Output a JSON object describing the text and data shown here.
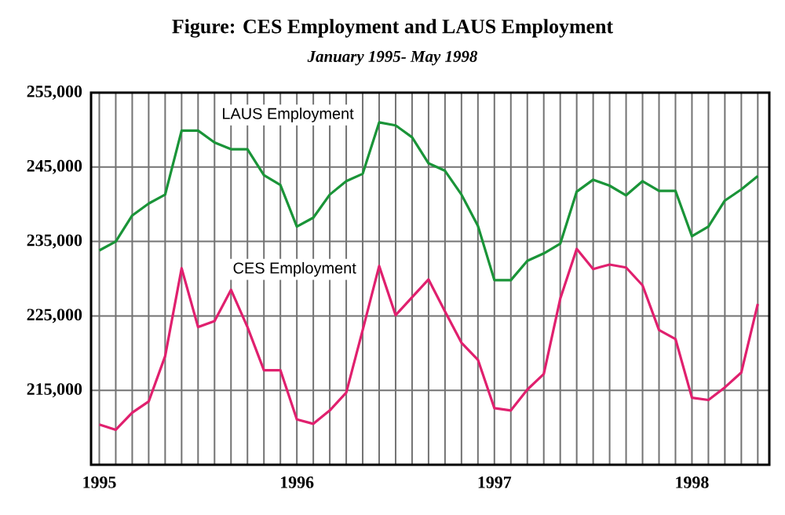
{
  "chart_data": {
    "type": "line",
    "title": "Figure:  CES Employment and LAUS Employment",
    "subtitle": "January 1995- May 1998",
    "x": [
      "1995-01",
      "1995-02",
      "1995-03",
      "1995-04",
      "1995-05",
      "1995-06",
      "1995-07",
      "1995-08",
      "1995-09",
      "1995-10",
      "1995-11",
      "1995-12",
      "1996-01",
      "1996-02",
      "1996-03",
      "1996-04",
      "1996-05",
      "1996-06",
      "1996-07",
      "1996-08",
      "1996-09",
      "1996-10",
      "1996-11",
      "1996-12",
      "1997-01",
      "1997-02",
      "1997-03",
      "1997-04",
      "1997-05",
      "1997-06",
      "1997-07",
      "1997-08",
      "1997-09",
      "1997-10",
      "1997-11",
      "1997-12",
      "1998-01",
      "1998-02",
      "1998-03",
      "1998-04",
      "1998-05"
    ],
    "series": [
      {
        "name": "LAUS Employment",
        "color": "#1a9438",
        "values": [
          233800,
          235000,
          238500,
          240100,
          241300,
          249900,
          249900,
          248300,
          247400,
          247400,
          243900,
          242600,
          237000,
          238200,
          241300,
          243100,
          244100,
          251000,
          250600,
          249000,
          245500,
          244500,
          241300,
          237100,
          229800,
          229800,
          232400,
          233400,
          234700,
          241700,
          243300,
          242500,
          241200,
          243100,
          241800,
          241800,
          235700,
          237000,
          240500,
          242000,
          243800
        ]
      },
      {
        "name": "CES Employment",
        "color": "#e0206e",
        "values": [
          210400,
          209700,
          212000,
          213500,
          219600,
          231400,
          223500,
          224300,
          228500,
          223500,
          217700,
          217700,
          211100,
          210500,
          212300,
          214700,
          223100,
          231700,
          225100,
          227500,
          229900,
          225600,
          221400,
          219100,
          212600,
          212300,
          215100,
          217200,
          227300,
          234000,
          231300,
          231900,
          231500,
          229100,
          223100,
          221900,
          214000,
          213700,
          215400,
          217400,
          226600
        ]
      }
    ],
    "xlim": [
      "1994-12-16",
      "1998-05-22"
    ],
    "xticks": [
      "1995",
      "1996",
      "1997",
      "1998"
    ],
    "ylim": [
      205000,
      255000
    ],
    "yticks": [
      {
        "value": 215000,
        "label": "215,000"
      },
      {
        "value": 225000,
        "label": "225,000"
      },
      {
        "value": 235000,
        "label": "235,000"
      },
      {
        "value": 245000,
        "label": "245,000"
      },
      {
        "value": 255000,
        "label": "255,000"
      }
    ],
    "grid": true,
    "legend": false,
    "marker": "none",
    "line_style": "solid"
  }
}
